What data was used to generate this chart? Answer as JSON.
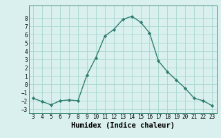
{
  "xlabel": "Humidex (Indice chaleur)",
  "x": [
    3,
    4,
    5,
    6,
    7,
    8,
    9,
    10,
    11,
    12,
    13,
    14,
    15,
    16,
    17,
    18,
    19,
    20,
    21,
    22,
    23
  ],
  "y": [
    -1.7,
    -2.1,
    -2.5,
    -2.0,
    -1.9,
    -2.0,
    1.1,
    3.2,
    5.8,
    6.6,
    7.8,
    8.2,
    7.5,
    6.2,
    2.8,
    1.5,
    0.5,
    -0.5,
    -1.7,
    -2.0,
    -2.6
  ],
  "line_color": "#2e7d6e",
  "marker": "D",
  "marker_size": 2.2,
  "bg_color": "#d9f0ee",
  "grid_color": "#a8d8d0",
  "ylim": [
    -3.5,
    9.5
  ],
  "xlim": [
    2.5,
    23.5
  ],
  "yticks": [
    -3,
    -2,
    -1,
    0,
    1,
    2,
    3,
    4,
    5,
    6,
    7,
    8
  ],
  "xticks": [
    3,
    4,
    5,
    6,
    7,
    8,
    9,
    10,
    11,
    12,
    13,
    14,
    15,
    16,
    17,
    18,
    19,
    20,
    21,
    22,
    23
  ],
  "tick_fontsize": 5.5,
  "xlabel_fontsize": 7.5,
  "line_width": 1.0
}
